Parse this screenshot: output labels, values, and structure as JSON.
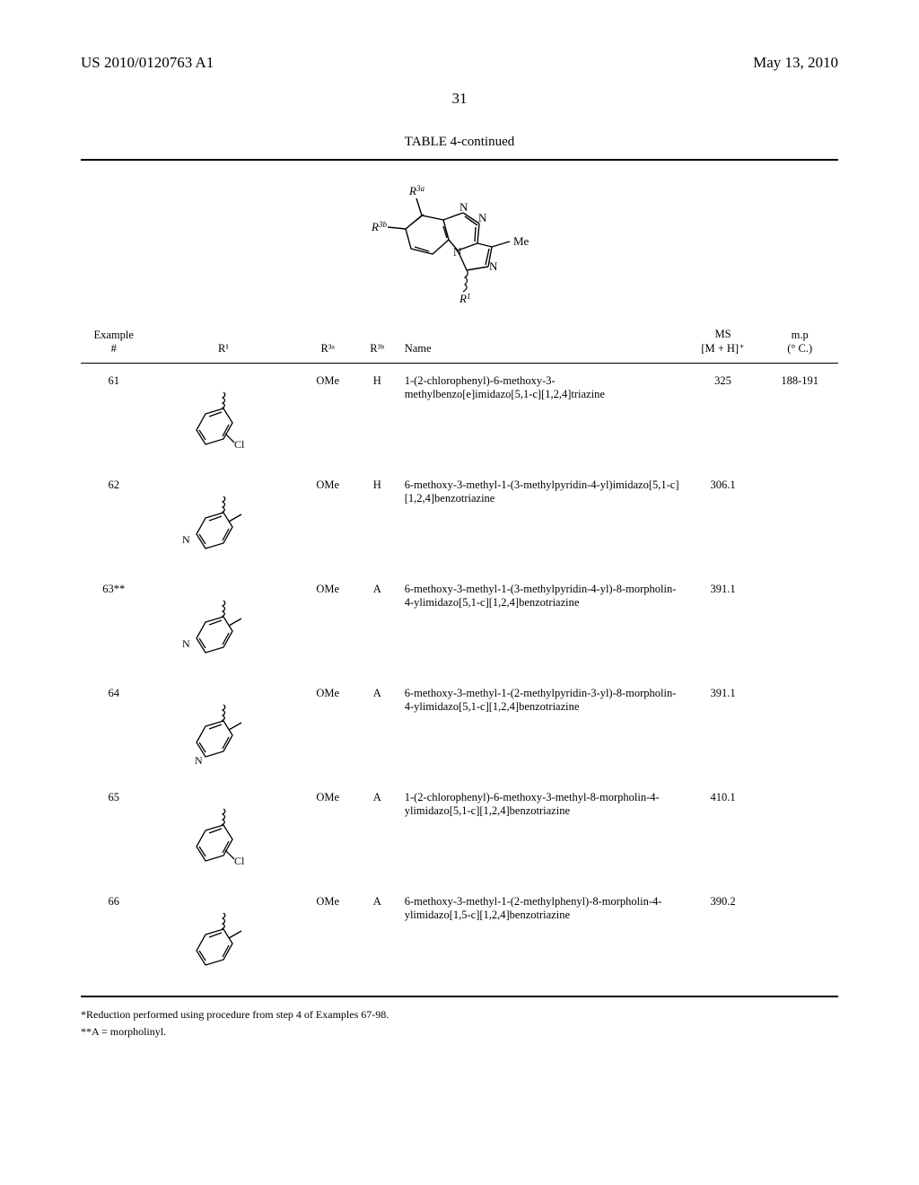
{
  "header": {
    "left": "US 2010/0120763 A1",
    "right": "May 13, 2010"
  },
  "page_number": "31",
  "table": {
    "title": "TABLE 4-continued",
    "core_structure": {
      "labels": {
        "r3a": "R³ᵃ",
        "r3b": "R³ᵇ",
        "r1": "R¹",
        "me": "Me"
      },
      "colors": {
        "bond": "#000000",
        "label": "#000000"
      }
    },
    "columns": {
      "example_top": "Example",
      "example_bot": "#",
      "r1": "R¹",
      "r3a": "R³ᵃ",
      "r3b": "R³ᵇ",
      "name": "Name",
      "ms_top": "MS",
      "ms_bot": "[M + H]⁺",
      "mp_top": "m.p",
      "mp_bot": "(° C.)"
    },
    "rows": [
      {
        "example": "61",
        "r1_type": "phenyl-2Cl",
        "r3a": "OMe",
        "r3b": "H",
        "name": "1-(2-chlorophenyl)-6-methoxy-3-methylbenzo[e]imidazo[5,1-c][1,2,4]triazine",
        "ms": "325",
        "mp": "188-191"
      },
      {
        "example": "62",
        "r1_type": "pyridin-4-yl-3Me",
        "r3a": "OMe",
        "r3b": "H",
        "name": "6-methoxy-3-methyl-1-(3-methylpyridin-4-yl)imidazo[5,1-c][1,2,4]benzotriazine",
        "ms": "306.1",
        "mp": ""
      },
      {
        "example": "63**",
        "r1_type": "pyridin-4-yl-3Me",
        "r3a": "OMe",
        "r3b": "A",
        "name": "6-methoxy-3-methyl-1-(3-methylpyridin-4-yl)-8-morpholin-4-ylimidazo[5,1-c][1,2,4]benzotriazine",
        "ms": "391.1",
        "mp": ""
      },
      {
        "example": "64",
        "r1_type": "pyridin-3-yl-2Me",
        "r3a": "OMe",
        "r3b": "A",
        "name": "6-methoxy-3-methyl-1-(2-methylpyridin-3-yl)-8-morpholin-4-ylimidazo[5,1-c][1,2,4]benzotriazine",
        "ms": "391.1",
        "mp": ""
      },
      {
        "example": "65",
        "r1_type": "phenyl-2Cl",
        "r3a": "OMe",
        "r3b": "A",
        "name": "1-(2-chlorophenyl)-6-methoxy-3-methyl-8-morpholin-4-ylimidazo[5,1-c][1,2,4]benzotriazine",
        "ms": "410.1",
        "mp": ""
      },
      {
        "example": "66",
        "r1_type": "phenyl-2Me",
        "r3a": "OMe",
        "r3b": "A",
        "name": "6-methoxy-3-methyl-1-(2-methylphenyl)-8-morpholin-4-ylimidazo[1,5-c][1,2,4]benzotriazine",
        "ms": "390.2",
        "mp": ""
      }
    ],
    "rule_color": "#000000"
  },
  "footnotes": {
    "star1": "*Reduction performed using procedure from step 4 of Examples 67-98.",
    "star2": "**A = morpholinyl."
  },
  "styling": {
    "body_font_size": 12.5,
    "header_font_size": 17,
    "background": "#ffffff",
    "text_color": "#000000"
  }
}
